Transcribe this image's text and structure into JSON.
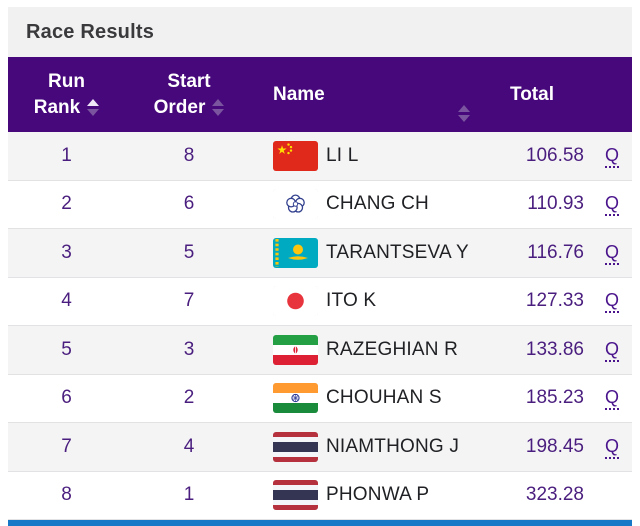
{
  "panel": {
    "title": "Race Results"
  },
  "table": {
    "columns": {
      "run_rank": {
        "line1": "Run",
        "line2": "Rank",
        "sort_state": "ascending"
      },
      "start_order": {
        "line1": "Start",
        "line2": "Order",
        "sort_state": "none"
      },
      "name": {
        "label": "Name",
        "sort_state": "none"
      },
      "total": {
        "label": "Total"
      }
    },
    "rows": [
      {
        "run_rank": "1",
        "start_order": "8",
        "flag": "china",
        "name": "LI L",
        "total": "106.58",
        "qualified": "Q"
      },
      {
        "run_rank": "2",
        "start_order": "6",
        "flag": "chinese-taipei",
        "name": "CHANG CH",
        "total": "110.93",
        "qualified": "Q"
      },
      {
        "run_rank": "3",
        "start_order": "5",
        "flag": "kazakhstan",
        "name": "TARANTSEVA Y",
        "total": "116.76",
        "qualified": "Q"
      },
      {
        "run_rank": "4",
        "start_order": "7",
        "flag": "japan",
        "name": "ITO K",
        "total": "127.33",
        "qualified": "Q"
      },
      {
        "run_rank": "5",
        "start_order": "3",
        "flag": "iran",
        "name": "RAZEGHIAN R",
        "total": "133.86",
        "qualified": "Q"
      },
      {
        "run_rank": "6",
        "start_order": "2",
        "flag": "india",
        "name": "CHOUHAN S",
        "total": "185.23",
        "qualified": "Q"
      },
      {
        "run_rank": "7",
        "start_order": "4",
        "flag": "thailand",
        "name": "NIAMTHONG J",
        "total": "198.45",
        "qualified": "Q"
      },
      {
        "run_rank": "8",
        "start_order": "1",
        "flag": "thailand",
        "name": "PHONWA P",
        "total": "323.28",
        "qualified": ""
      }
    ]
  },
  "colors": {
    "header_background": "#46087A",
    "accent_purple_text": "#4A1E7E",
    "qualified_link": "#4A148C",
    "bottom_bar_blue": "#1878C8",
    "title_bar_background": "#f1f1f2",
    "zebra_row": "#f4f4f5"
  }
}
